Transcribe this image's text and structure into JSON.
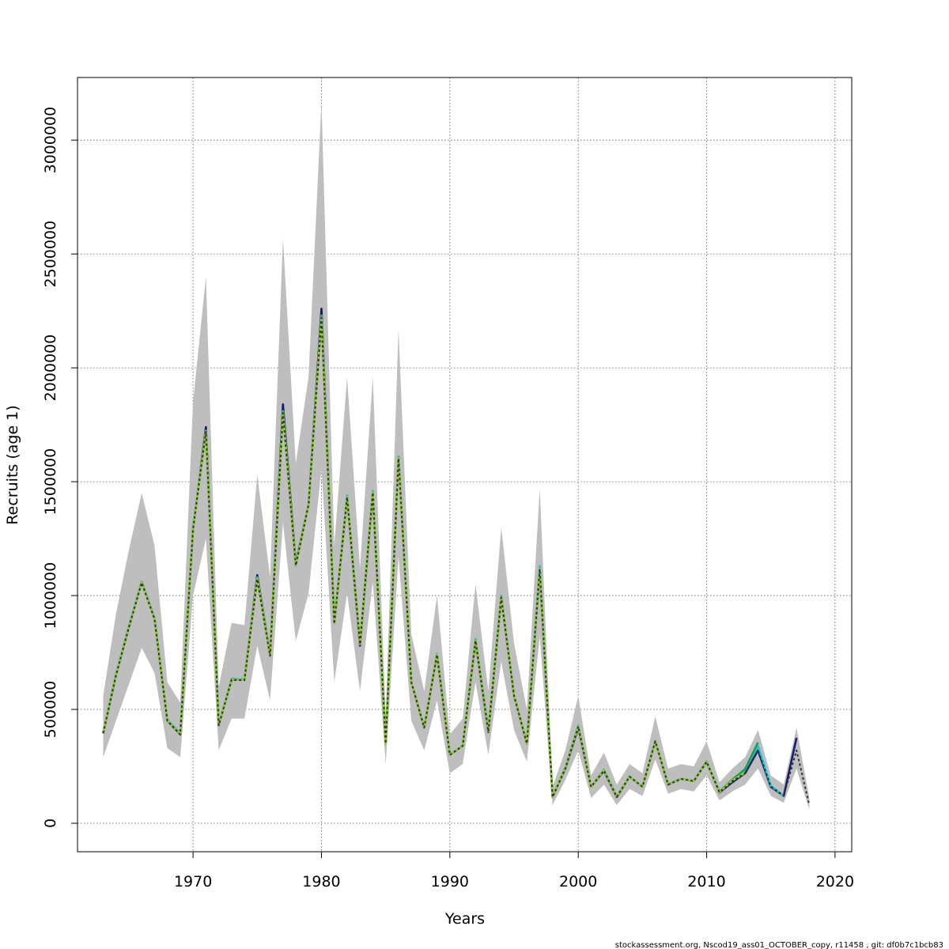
{
  "chart_data": {
    "type": "line",
    "xlabel": "Years",
    "ylabel": "Recruits (age 1)",
    "xlim": [
      1963,
      2018
    ],
    "ylim": [
      0,
      3250000
    ],
    "x_ticks": [
      "1970",
      "1980",
      "1990",
      "2000",
      "2010",
      "2020"
    ],
    "y_ticks": [
      "0",
      "500000",
      "1000000",
      "1500000",
      "2000000",
      "2500000",
      "3000000"
    ],
    "grid": true,
    "grid_x": [
      1970,
      1980,
      1990,
      2000,
      2010,
      2020
    ],
    "grid_y": [
      0,
      500000,
      1000000,
      1500000,
      2000000,
      2500000,
      3000000
    ],
    "years": [
      1963,
      1964,
      1965,
      1966,
      1967,
      1968,
      1969,
      1970,
      1971,
      1972,
      1973,
      1974,
      1975,
      1976,
      1977,
      1978,
      1979,
      1980,
      1981,
      1982,
      1983,
      1984,
      1985,
      1986,
      1987,
      1988,
      1989,
      1990,
      1991,
      1992,
      1993,
      1994,
      1995,
      1996,
      1997,
      1998,
      1999,
      2000,
      2001,
      2002,
      2003,
      2004,
      2005,
      2006,
      2007,
      2008,
      2009,
      2010,
      2011,
      2012,
      2013,
      2014,
      2015,
      2016,
      2017,
      2018
    ],
    "confidence_band": {
      "color": "#bebebe",
      "lower": [
        290000,
        450000,
        610000,
        770000,
        660000,
        330000,
        290000,
        1000000,
        1250000,
        320000,
        460000,
        460000,
        780000,
        540000,
        1320000,
        800000,
        1010000,
        1560000,
        620000,
        1010000,
        580000,
        1060000,
        260000,
        1170000,
        450000,
        320000,
        540000,
        220000,
        260000,
        620000,
        300000,
        710000,
        410000,
        270000,
        820000,
        80000,
        190000,
        320000,
        110000,
        170000,
        80000,
        150000,
        120000,
        280000,
        130000,
        150000,
        140000,
        210000,
        100000,
        140000,
        170000,
        240000,
        120000,
        90000,
        240000,
        60000
      ],
      "upper": [
        560000,
        920000,
        1200000,
        1450000,
        1220000,
        620000,
        530000,
        1850000,
        2400000,
        600000,
        880000,
        870000,
        1530000,
        1080000,
        2570000,
        1580000,
        1960000,
        3170000,
        1220000,
        1960000,
        1120000,
        1960000,
        470000,
        2170000,
        830000,
        580000,
        1000000,
        390000,
        460000,
        1050000,
        580000,
        1300000,
        790000,
        500000,
        1470000,
        160000,
        320000,
        560000,
        210000,
        310000,
        170000,
        260000,
        220000,
        470000,
        240000,
        260000,
        250000,
        360000,
        180000,
        240000,
        290000,
        410000,
        210000,
        170000,
        420000,
        110000
      ]
    },
    "series": [
      {
        "color": "#1a1a6e",
        "values": [
          395000,
          650000,
          860000,
          1060000,
          900000,
          450000,
          390000,
          1290000,
          1740000,
          430000,
          630000,
          630000,
          1090000,
          740000,
          1840000,
          1140000,
          1400000,
          2260000,
          880000,
          1430000,
          780000,
          1450000,
          350000,
          1610000,
          620000,
          420000,
          740000,
          300000,
          340000,
          800000,
          400000,
          990000,
          560000,
          350000,
          1110000,
          115000,
          240000,
          420000,
          160000,
          230000,
          115000,
          205000,
          160000,
          360000,
          170000,
          195000,
          185000,
          270000,
          135000,
          180000,
          220000,
          320000,
          160000,
          120000,
          375000
        ]
      },
      {
        "color": "#1ec8dc",
        "values": [
          400000,
          655000,
          865000,
          1060000,
          900000,
          455000,
          395000,
          1300000,
          1720000,
          430000,
          635000,
          632000,
          1080000,
          740000,
          1810000,
          1130000,
          1400000,
          2230000,
          880000,
          1440000,
          790000,
          1460000,
          350000,
          1610000,
          620000,
          420000,
          745000,
          300000,
          340000,
          810000,
          410000,
          1000000,
          560000,
          355000,
          1130000,
          117000,
          245000,
          430000,
          160000,
          235000,
          118000,
          205000,
          160000,
          360000,
          172000,
          196000,
          186000,
          272000,
          140000,
          190000,
          235000,
          340000,
          165000,
          120000
        ]
      },
      {
        "color": "#1aa050",
        "values": [
          398000,
          652000,
          862000,
          1058000,
          898000,
          452000,
          392000,
          1295000,
          1725000,
          430000,
          632000,
          630000,
          1075000,
          738000,
          1805000,
          1135000,
          1400000,
          2225000,
          878000,
          1435000,
          788000,
          1455000,
          350000,
          1605000,
          620000,
          420000,
          742000,
          300000,
          340000,
          805000,
          405000,
          995000,
          560000,
          352000,
          1120000,
          116000,
          243000,
          427000,
          160000,
          233000,
          117000,
          205000,
          160000,
          360000,
          171000,
          195000,
          185000,
          271000,
          138000,
          192000,
          238000,
          355000
        ]
      },
      {
        "color": "#9acd32",
        "values": [
          397000,
          651000,
          861000,
          1057000,
          897000,
          451000,
          391000,
          1293000,
          1722000,
          430000,
          631000,
          629000,
          1073000,
          736000,
          1803000,
          1133000,
          1400000,
          2222000,
          877000,
          1433000,
          787000,
          1453000,
          350000,
          1603000,
          620000,
          420000,
          741000,
          300000,
          340000,
          803000,
          404000,
          993000,
          560000,
          351000,
          1118000,
          116000,
          242000,
          426000,
          160000,
          232000,
          117000,
          205000,
          160000,
          360000,
          171000,
          195000,
          185000,
          270000,
          137000,
          188000,
          222000
        ]
      },
      {
        "color": "#333333",
        "values": [
          396000,
          650000,
          860000,
          1056000,
          896000,
          450000,
          390000,
          1292000,
          1720000,
          430000,
          630000,
          628000,
          1072000,
          735000,
          1802000,
          1132000,
          1400000,
          2220000,
          876000,
          1432000,
          786000,
          1452000,
          350000,
          1602000,
          620000,
          420000,
          740000,
          300000,
          340000,
          802000,
          403000,
          992000,
          560000,
          350000,
          1116000,
          115000,
          241000,
          425000,
          160000,
          231000,
          116000,
          205000,
          160000,
          360000,
          170000,
          195000,
          185000,
          270000,
          136000,
          185000,
          220000,
          320000,
          162000,
          121000,
          320000,
          80000
        ],
        "dashed": true
      }
    ]
  },
  "footer_text": "stockassessment.org, Nscod19_ass01_OCTOBER_copy, r11458 , git: df0b7c1bcb83"
}
